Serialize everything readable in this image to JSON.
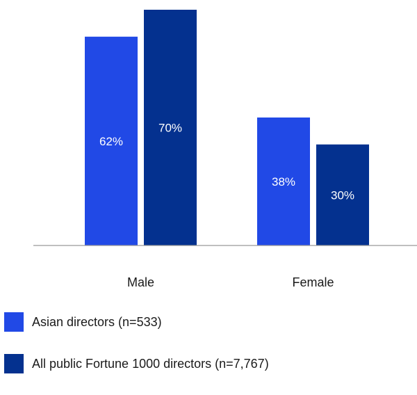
{
  "chart_data": {
    "type": "bar",
    "categories": [
      "Male",
      "Female"
    ],
    "series": [
      {
        "name": "Asian directors (n=533)",
        "values": [
          62,
          38
        ],
        "labels": [
          "62%",
          "38%"
        ],
        "color": "#2149e6"
      },
      {
        "name": "All public Fortune 1000 directors (n=7,767)",
        "values": [
          70,
          30
        ],
        "labels": [
          "70%",
          "30%"
        ],
        "color": "#04318f"
      }
    ],
    "ylim": [
      0,
      70
    ],
    "grid": false,
    "legend_position": "bottom-left",
    "axis_color": "#999999"
  }
}
